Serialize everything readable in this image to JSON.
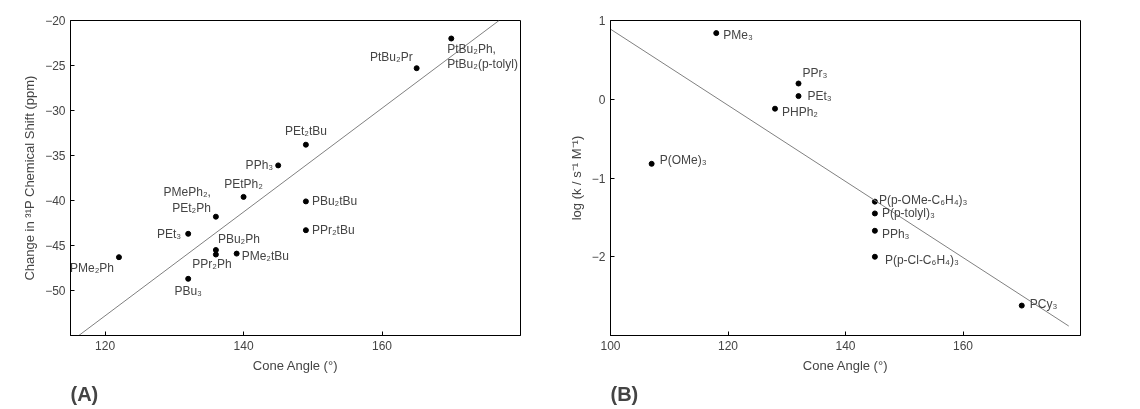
{
  "chart_data": [
    {
      "type": "scatter",
      "title": "(A)",
      "xlabel": "Cone Angle (°)",
      "ylabel": "Change in ³¹P Chemical Shift (ppm)",
      "xlim": [
        115,
        180
      ],
      "ylim": [
        -55,
        -20
      ],
      "xticks": [
        120,
        140,
        160
      ],
      "yticks": [
        -20,
        -25,
        -30,
        -35,
        -40,
        -45,
        -50
      ],
      "grid": false,
      "series": [
        {
          "color": "#000000",
          "marker": "circle",
          "x": [
            122,
            132,
            136,
            140,
            145,
            149,
            149,
            149,
            136,
            136,
            139,
            132,
            165,
            170
          ],
          "values": [
            -46.3,
            -43.7,
            -41.8,
            -39.6,
            -36.1,
            -33.8,
            -40.1,
            -43.3,
            -45.5,
            -46.0,
            -45.9,
            -48.7,
            -25.3,
            -22.0
          ]
        },
        {
          "type": "line",
          "color": "#808080",
          "line_style": "solid",
          "x": [
            116.2,
            176.9
          ],
          "values": [
            -55,
            -20
          ]
        }
      ],
      "annotations": [
        {
          "text": "PMe₂Ph",
          "x": 122,
          "y": -46.3
        },
        {
          "text": "PEt₃",
          "x": 132,
          "y": -43.7
        },
        {
          "text": "PMePh₂,\nPEt₂Ph",
          "x": 136,
          "y": -41.8
        },
        {
          "text": "PEtPh₂",
          "x": 140,
          "y": -39.6
        },
        {
          "text": "PPh₃",
          "x": 145,
          "y": -36.1
        },
        {
          "text": "PEt₂tBu",
          "x": 149,
          "y": -33.8
        },
        {
          "text": "PBu₂tBu",
          "x": 149,
          "y": -40.1
        },
        {
          "text": "PPr₂tBu",
          "x": 149,
          "y": -43.3
        },
        {
          "text": "PBu₂Ph",
          "x": 136,
          "y": -45.5
        },
        {
          "text": "PPr₂Ph",
          "x": 136,
          "y": -46.0
        },
        {
          "text": "PMe₂tBu",
          "x": 139,
          "y": -45.9
        },
        {
          "text": "PBu₃",
          "x": 132,
          "y": -48.7
        },
        {
          "text": "PtBu₂Pr",
          "x": 165,
          "y": -25.3
        },
        {
          "text": "PtBu₂Ph,\nPtBu₂(p-tolyl)",
          "x": 170,
          "y": -22.0
        }
      ]
    },
    {
      "type": "scatter",
      "title": "(B)",
      "xlabel": "Cone Angle (°)",
      "ylabel": "log (k / s⁻¹ M⁻¹)",
      "xlim": [
        100,
        180
      ],
      "ylim": [
        -3,
        1
      ],
      "xticks": [
        100,
        120,
        140,
        160
      ],
      "yticks": [
        1,
        0,
        -1,
        -2
      ],
      "grid": false,
      "series": [
        {
          "color": "#000000",
          "marker": "circle",
          "x": [
            118,
            132,
            132,
            128,
            107,
            145,
            145,
            145,
            145,
            170
          ],
          "values": [
            0.84,
            0.2,
            0.04,
            -0.12,
            -0.82,
            -1.3,
            -1.45,
            -1.67,
            -2.0,
            -2.62
          ]
        },
        {
          "type": "line",
          "color": "#808080",
          "line_style": "solid",
          "x": [
            100,
            178
          ],
          "values": [
            0.89,
            -2.88
          ]
        }
      ],
      "annotations": [
        {
          "text": "PMe₃",
          "x": 118,
          "y": 0.84
        },
        {
          "text": "PPr₃",
          "x": 132,
          "y": 0.2
        },
        {
          "text": "PEt₃",
          "x": 132,
          "y": 0.04
        },
        {
          "text": "PHPh₂",
          "x": 128,
          "y": -0.12
        },
        {
          "text": "P(OMe)₃",
          "x": 107,
          "y": -0.82
        },
        {
          "text": "P(p-OMe-C₆H₄)₃",
          "x": 145,
          "y": -1.3
        },
        {
          "text": "P(p-tolyl)₃",
          "x": 145,
          "y": -1.45
        },
        {
          "text": "PPh₃",
          "x": 145,
          "y": -1.67
        },
        {
          "text": "P(p-Cl-C₆H₄)₃",
          "x": 145,
          "y": -2.0
        },
        {
          "text": "PCy₃",
          "x": 170,
          "y": -2.62
        }
      ]
    }
  ]
}
